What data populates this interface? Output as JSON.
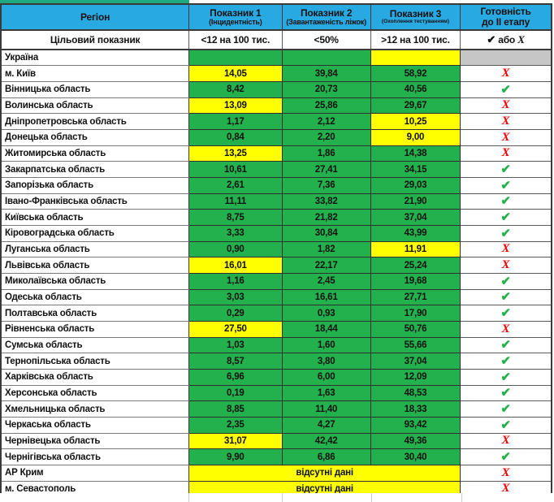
{
  "table": {
    "header": {
      "region": "Регіон",
      "col1_title": "Показник 1",
      "col1_sub": "(Інцидентність)",
      "col2_title": "Показник 2",
      "col2_sub": "(Завантаженість ліжок)",
      "col3_title": "Показник 3",
      "col3_sub": "(Охоплення тестуванням)",
      "ready_line1": "Готовність",
      "ready_line2": "до ІІ етапу"
    },
    "target_row": {
      "label": "Цільовий показник",
      "col1": "<12 на 100 тис.",
      "col2": "<50%",
      "col3": ">12 на 100 тис.",
      "or_word": "або"
    },
    "no_data_label": "відсутні дані",
    "rows": [
      {
        "region": "Україна",
        "cells": [
          {
            "v": "",
            "c": "g"
          },
          {
            "v": "",
            "c": "g"
          },
          {
            "v": "",
            "c": "y"
          }
        ],
        "ready": "none"
      },
      {
        "region": "м. Київ",
        "cells": [
          {
            "v": "14,05",
            "c": "y"
          },
          {
            "v": "39,84",
            "c": "g"
          },
          {
            "v": "58,92",
            "c": "g"
          }
        ],
        "ready": "cross"
      },
      {
        "region": "Вінницька область",
        "cells": [
          {
            "v": "8,42",
            "c": "g"
          },
          {
            "v": "20,73",
            "c": "g"
          },
          {
            "v": "40,56",
            "c": "g"
          }
        ],
        "ready": "check"
      },
      {
        "region": "Волинська область",
        "cells": [
          {
            "v": "13,09",
            "c": "y"
          },
          {
            "v": "25,86",
            "c": "g"
          },
          {
            "v": "29,67",
            "c": "g"
          }
        ],
        "ready": "cross"
      },
      {
        "region": "Дніпропетровська область",
        "cells": [
          {
            "v": "1,17",
            "c": "g"
          },
          {
            "v": "2,12",
            "c": "g"
          },
          {
            "v": "10,25",
            "c": "y"
          }
        ],
        "ready": "cross"
      },
      {
        "region": "Донецька область",
        "cells": [
          {
            "v": "0,84",
            "c": "g"
          },
          {
            "v": "2,20",
            "c": "g"
          },
          {
            "v": "9,00",
            "c": "y"
          }
        ],
        "ready": "cross"
      },
      {
        "region": "Житомирська область",
        "cells": [
          {
            "v": "13,25",
            "c": "y"
          },
          {
            "v": "1,86",
            "c": "g"
          },
          {
            "v": "14,38",
            "c": "g"
          }
        ],
        "ready": "cross"
      },
      {
        "region": "Закарпатська область",
        "cells": [
          {
            "v": "10,61",
            "c": "g"
          },
          {
            "v": "27,41",
            "c": "g"
          },
          {
            "v": "34,15",
            "c": "g"
          }
        ],
        "ready": "check"
      },
      {
        "region": "Запорізька область",
        "cells": [
          {
            "v": "2,61",
            "c": "g"
          },
          {
            "v": "7,36",
            "c": "g"
          },
          {
            "v": "29,03",
            "c": "g"
          }
        ],
        "ready": "check"
      },
      {
        "region": "Івано-Франківська область",
        "cells": [
          {
            "v": "11,11",
            "c": "g"
          },
          {
            "v": "33,82",
            "c": "g"
          },
          {
            "v": "21,90",
            "c": "g"
          }
        ],
        "ready": "check"
      },
      {
        "region": "Київська область",
        "cells": [
          {
            "v": "8,75",
            "c": "g"
          },
          {
            "v": "21,82",
            "c": "g"
          },
          {
            "v": "37,04",
            "c": "g"
          }
        ],
        "ready": "check"
      },
      {
        "region": "Кіровоградська область",
        "cells": [
          {
            "v": "3,33",
            "c": "g"
          },
          {
            "v": "30,84",
            "c": "g"
          },
          {
            "v": "43,99",
            "c": "g"
          }
        ],
        "ready": "check"
      },
      {
        "region": "Луганська область",
        "cells": [
          {
            "v": "0,90",
            "c": "g"
          },
          {
            "v": "1,82",
            "c": "g"
          },
          {
            "v": "11,91",
            "c": "y"
          }
        ],
        "ready": "cross"
      },
      {
        "region": "Львівська область",
        "cells": [
          {
            "v": "16,01",
            "c": "y"
          },
          {
            "v": "22,17",
            "c": "g"
          },
          {
            "v": "25,24",
            "c": "g"
          }
        ],
        "ready": "cross"
      },
      {
        "region": "Миколаївська область",
        "cells": [
          {
            "v": "1,16",
            "c": "g"
          },
          {
            "v": "2,45",
            "c": "g"
          },
          {
            "v": "19,68",
            "c": "g"
          }
        ],
        "ready": "check"
      },
      {
        "region": "Одеська область",
        "cells": [
          {
            "v": "3,03",
            "c": "g"
          },
          {
            "v": "16,61",
            "c": "g"
          },
          {
            "v": "27,71",
            "c": "g"
          }
        ],
        "ready": "check"
      },
      {
        "region": "Полтавська область",
        "cells": [
          {
            "v": "0,29",
            "c": "g"
          },
          {
            "v": "0,93",
            "c": "g"
          },
          {
            "v": "17,90",
            "c": "g"
          }
        ],
        "ready": "check"
      },
      {
        "region": "Рівненська область",
        "cells": [
          {
            "v": "27,50",
            "c": "y"
          },
          {
            "v": "18,44",
            "c": "g"
          },
          {
            "v": "50,76",
            "c": "g"
          }
        ],
        "ready": "cross"
      },
      {
        "region": "Сумська область",
        "cells": [
          {
            "v": "1,03",
            "c": "g"
          },
          {
            "v": "1,60",
            "c": "g"
          },
          {
            "v": "55,66",
            "c": "g"
          }
        ],
        "ready": "check"
      },
      {
        "region": "Тернопільська область",
        "cells": [
          {
            "v": "8,57",
            "c": "g"
          },
          {
            "v": "3,80",
            "c": "g"
          },
          {
            "v": "37,04",
            "c": "g"
          }
        ],
        "ready": "check"
      },
      {
        "region": "Харківська область",
        "cells": [
          {
            "v": "6,96",
            "c": "g"
          },
          {
            "v": "6,00",
            "c": "g"
          },
          {
            "v": "12,09",
            "c": "g"
          }
        ],
        "ready": "check"
      },
      {
        "region": "Херсонська область",
        "cells": [
          {
            "v": "0,19",
            "c": "g"
          },
          {
            "v": "1,63",
            "c": "g"
          },
          {
            "v": "48,53",
            "c": "g"
          }
        ],
        "ready": "check"
      },
      {
        "region": "Хмельницька область",
        "cells": [
          {
            "v": "8,85",
            "c": "g"
          },
          {
            "v": "11,40",
            "c": "g"
          },
          {
            "v": "18,33",
            "c": "g"
          }
        ],
        "ready": "check"
      },
      {
        "region": "Черкаська область",
        "cells": [
          {
            "v": "2,35",
            "c": "g"
          },
          {
            "v": "4,27",
            "c": "g"
          },
          {
            "v": "93,42",
            "c": "g"
          }
        ],
        "ready": "check"
      },
      {
        "region": "Чернівецька область",
        "cells": [
          {
            "v": "31,07",
            "c": "y"
          },
          {
            "v": "42,42",
            "c": "g"
          },
          {
            "v": "49,36",
            "c": "g"
          }
        ],
        "ready": "cross"
      },
      {
        "region": "Чернігівська область",
        "cells": [
          {
            "v": "9,90",
            "c": "g"
          },
          {
            "v": "6,86",
            "c": "g"
          },
          {
            "v": "30,40",
            "c": "g"
          }
        ],
        "ready": "check"
      },
      {
        "region": "АР Крим",
        "span": true,
        "value": "відсутні дані",
        "c": "y",
        "ready": "cross"
      },
      {
        "region": "м. Севастополь",
        "span": true,
        "value": "відсутні дані",
        "c": "y",
        "ready": "cross"
      }
    ]
  },
  "symbols": {
    "check": "✔",
    "cross": "Х"
  },
  "colors": {
    "header_blue": "#29A9E2",
    "cell_green": "#22B14C",
    "cell_yellow": "#FFFF00",
    "cell_gray": "#C6C6C6",
    "check_green": "#24B14B",
    "cross_red": "#FF0000",
    "top_strip_green": "#1FA97E"
  }
}
